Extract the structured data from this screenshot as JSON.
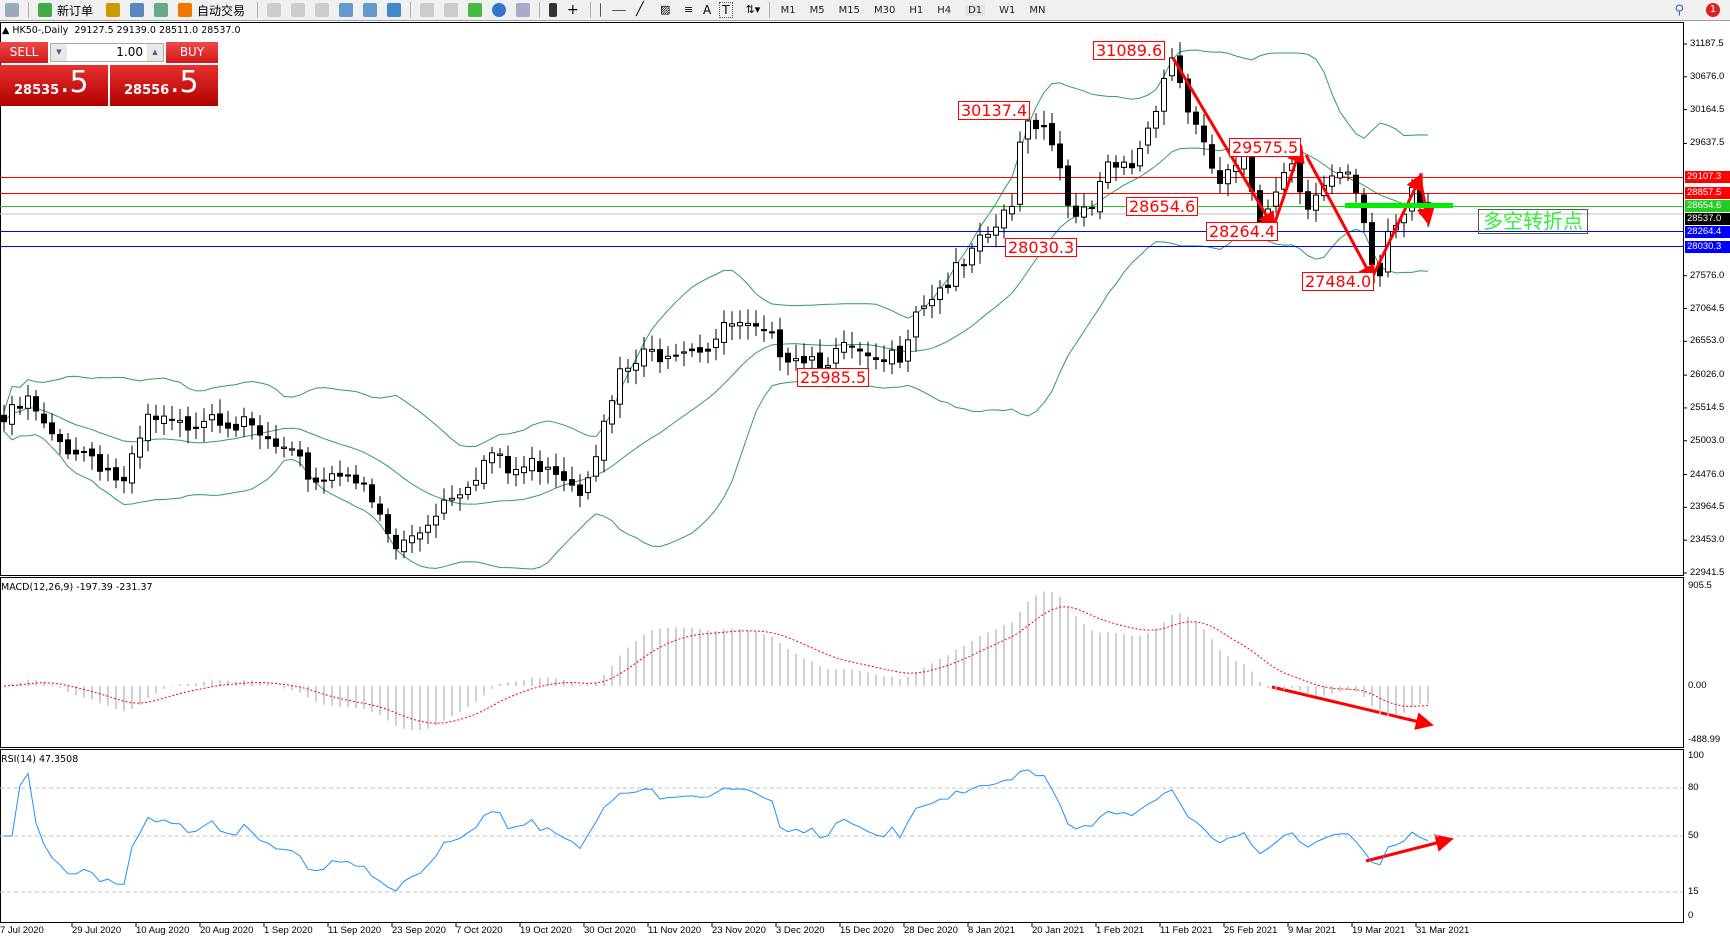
{
  "toolbar": {
    "new_order": "新订单",
    "auto_trading": "自动交易",
    "text_tool": "A",
    "label_tool": "T",
    "timeframes": [
      "M1",
      "M5",
      "M15",
      "M30",
      "H1",
      "H4",
      "D1",
      "W1",
      "MN"
    ],
    "active_timeframe": "D1",
    "notification_count": "1"
  },
  "chart_header": {
    "symbol": "HK50-,Daily",
    "ohlc": "29127.5 29139.0 28511.0 28537.0"
  },
  "one_click": {
    "sell": "SELL",
    "buy": "BUY",
    "lot": "1.00",
    "sell_price_main": "28535",
    "sell_price_frac": ".5",
    "buy_price_main": "28556",
    "buy_price_frac": ".5"
  },
  "price_axis": [
    "31187.5",
    "30676.0",
    "30164.5",
    "29637.5",
    "29107.3",
    "28857.5",
    "28654.6",
    "28537.0",
    "28264.4",
    "28030.3",
    "27576.0",
    "27064.5",
    "26553.0",
    "26026.0",
    "25514.5",
    "25003.0",
    "24476.0",
    "23964.5",
    "23453.0",
    "22941.5"
  ],
  "price_ticks": [
    31187.5,
    30676.0,
    30164.5,
    29637.5,
    27576.0,
    27064.5,
    26553.0,
    26026.0,
    25514.5,
    25003.0,
    24476.0,
    23964.5,
    23453.0,
    22941.5
  ],
  "price_range": [
    22941.5,
    31187.5
  ],
  "hlines": [
    {
      "price": 29107.3,
      "label": "29107.3",
      "color": "#ff0000"
    },
    {
      "price": 28857.5,
      "label": "28857.5",
      "color": "#ff0000"
    },
    {
      "price": 28654.6,
      "label": "28654.6",
      "color": "#22cc22"
    },
    {
      "price": 28537.0,
      "label": "28537.0",
      "color": "#000000",
      "line": "#c0c0c0"
    },
    {
      "price": 28264.4,
      "label": "28264.4",
      "color": "#0000ff"
    },
    {
      "price": 28030.3,
      "label": "28030.3",
      "color": "#0000ff"
    }
  ],
  "annotations": [
    "31089.6",
    "30137.4",
    "29575.5",
    "28654.6",
    "28264.4",
    "28030.3",
    "27484.0",
    "25985.5"
  ],
  "note_text": "多空转折点",
  "price_path": [
    [
      0,
      25300
    ],
    [
      3,
      25600
    ],
    [
      6,
      25000
    ],
    [
      11,
      24800
    ],
    [
      15,
      24300
    ],
    [
      18,
      25300
    ],
    [
      22,
      25200
    ],
    [
      26,
      25500
    ],
    [
      30,
      25200
    ],
    [
      35,
      24800
    ],
    [
      39,
      24400
    ],
    [
      43,
      24600
    ],
    [
      46,
      24000
    ],
    [
      49,
      23300
    ],
    [
      52,
      23600
    ],
    [
      55,
      24100
    ],
    [
      58,
      24400
    ],
    [
      61,
      24800
    ],
    [
      63,
      24500
    ],
    [
      68,
      24700
    ],
    [
      72,
      24300
    ],
    [
      75,
      25200
    ],
    [
      77,
      26000
    ],
    [
      80,
      26300
    ],
    [
      84,
      26500
    ],
    [
      88,
      26500
    ],
    [
      91,
      26800
    ],
    [
      95,
      26600
    ],
    [
      98,
      26400
    ],
    [
      102,
      26300
    ],
    [
      106,
      26400
    ],
    [
      109,
      26100
    ],
    [
      112,
      26400
    ],
    [
      114,
      27100
    ],
    [
      117,
      27400
    ],
    [
      120,
      27700
    ],
    [
      123,
      28200
    ],
    [
      126,
      28600
    ],
    [
      127,
      29800
    ],
    [
      128,
      30000
    ],
    [
      130,
      30000
    ],
    [
      132,
      29300
    ],
    [
      134,
      28400
    ],
    [
      136,
      28600
    ],
    [
      138,
      29200
    ],
    [
      141,
      29300
    ],
    [
      143,
      29900
    ],
    [
      145,
      30700
    ],
    [
      146,
      31000
    ],
    [
      148,
      30200
    ],
    [
      150,
      29500
    ],
    [
      152,
      29000
    ],
    [
      155,
      29300
    ],
    [
      157,
      28500
    ],
    [
      159,
      29000
    ],
    [
      161,
      29400
    ],
    [
      163,
      28700
    ],
    [
      166,
      29000
    ],
    [
      168,
      29100
    ],
    [
      170,
      28400
    ],
    [
      171,
      27800
    ],
    [
      172,
      27600
    ],
    [
      173,
      28300
    ],
    [
      175,
      28600
    ],
    [
      176,
      29100
    ],
    [
      178,
      28537
    ]
  ],
  "macd": {
    "label": "MACD(12,26,9) -197.39 -231.37",
    "ticks": [
      "905.5",
      "0.00",
      "-488.99"
    ],
    "range": [
      -488.99,
      905.5
    ]
  },
  "rsi": {
    "label": "RSI(14) 47.3508",
    "ticks": [
      "100",
      "80",
      "50",
      "15",
      "0"
    ],
    "levels": [
      80,
      50,
      15
    ]
  },
  "dates": [
    "7 Jul 2020",
    "29 Jul 2020",
    "10 Aug 2020",
    "20 Aug 2020",
    "1 Sep 2020",
    "11 Sep 2020",
    "23 Sep 2020",
    "7 Oct 2020",
    "19 Oct 2020",
    "30 Oct 2020",
    "11 Nov 2020",
    "23 Nov 2020",
    "3 Dec 2020",
    "15 Dec 2020",
    "28 Dec 2020",
    "8 Jan 2021",
    "20 Jan 2021",
    "1 Feb 2021",
    "11 Feb 2021",
    "25 Feb 2021",
    "9 Mar 2021",
    "19 Mar 2021",
    "31 Mar 2021"
  ],
  "colors": {
    "bands": "#2e9e5e",
    "arrow": "#ff0000",
    "macd_signal": "#ff0000",
    "macd_hist": "#c0c0c0",
    "rsi": "#1e90ff",
    "note": "#33ee33"
  }
}
